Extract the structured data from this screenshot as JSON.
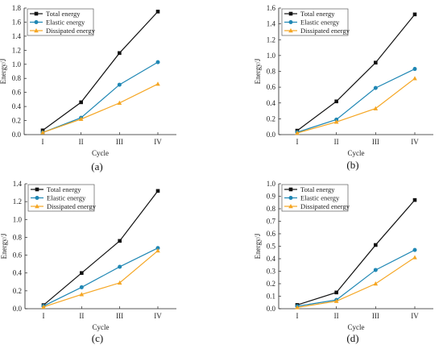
{
  "colors": {
    "total": "#111111",
    "elastic": "#1f87b4",
    "dissipated": "#f5a623"
  },
  "chart_data": [
    {
      "type": "line",
      "panel_label": "(a)",
      "categories": [
        "I",
        "II",
        "III",
        "IV"
      ],
      "xlabel": "Cycle",
      "ylabel": "Energy/J",
      "ylim": [
        0,
        1.8
      ],
      "ytick_step": 0.2,
      "yticks": [
        "0.0",
        "0.2",
        "0.4",
        "0.6",
        "0.8",
        "1.0",
        "1.2",
        "1.4",
        "1.6",
        "1.8"
      ],
      "legend_position": "top-left",
      "series": [
        {
          "name": "Total energy",
          "marker": "square",
          "values": [
            0.06,
            0.46,
            1.16,
            1.75
          ]
        },
        {
          "name": "Elastic energy",
          "marker": "circle",
          "values": [
            0.03,
            0.24,
            0.71,
            1.03
          ]
        },
        {
          "name": "Dissipated energy",
          "marker": "triangle",
          "values": [
            0.03,
            0.22,
            0.45,
            0.72
          ]
        }
      ]
    },
    {
      "type": "line",
      "panel_label": "(b)",
      "categories": [
        "I",
        "II",
        "III",
        "IV"
      ],
      "xlabel": "Cycle",
      "ylabel": "Energy/J",
      "ylim": [
        0,
        1.6
      ],
      "ytick_step": 0.2,
      "yticks": [
        "0.0",
        "0.2",
        "0.4",
        "0.6",
        "0.8",
        "1.0",
        "1.2",
        "1.4",
        "1.6"
      ],
      "legend_position": "top-left",
      "series": [
        {
          "name": "Total energy",
          "marker": "square",
          "values": [
            0.05,
            0.42,
            0.91,
            1.52
          ]
        },
        {
          "name": "Elastic energy",
          "marker": "circle",
          "values": [
            0.03,
            0.19,
            0.59,
            0.83
          ]
        },
        {
          "name": "Dissipated energy",
          "marker": "triangle",
          "values": [
            0.02,
            0.16,
            0.33,
            0.71
          ]
        }
      ]
    },
    {
      "type": "line",
      "panel_label": "(c)",
      "categories": [
        "I",
        "II",
        "III",
        "IV"
      ],
      "xlabel": "Cycle",
      "ylabel": "Energy/J",
      "ylim": [
        0,
        1.4
      ],
      "ytick_step": 0.2,
      "yticks": [
        "0.0",
        "0.2",
        "0.4",
        "0.6",
        "0.8",
        "1.0",
        "1.2",
        "1.4"
      ],
      "legend_position": "top-left",
      "series": [
        {
          "name": "Total energy",
          "marker": "square",
          "values": [
            0.04,
            0.4,
            0.76,
            1.32
          ]
        },
        {
          "name": "Elastic energy",
          "marker": "circle",
          "values": [
            0.03,
            0.24,
            0.47,
            0.68
          ]
        },
        {
          "name": "Dissipated energy",
          "marker": "triangle",
          "values": [
            0.02,
            0.16,
            0.29,
            0.65
          ]
        }
      ]
    },
    {
      "type": "line",
      "panel_label": "(d)",
      "categories": [
        "I",
        "II",
        "III",
        "IV"
      ],
      "xlabel": "Cycle",
      "ylabel": "Energy/J",
      "ylim": [
        0,
        1.0
      ],
      "ytick_step": 0.1,
      "yticks": [
        "0.0",
        "0.1",
        "0.2",
        "0.3",
        "0.4",
        "0.5",
        "0.6",
        "0.7",
        "0.8",
        "0.9",
        "1.0"
      ],
      "legend_position": "top-left",
      "series": [
        {
          "name": "Total energy",
          "marker": "square",
          "values": [
            0.03,
            0.13,
            0.51,
            0.87
          ]
        },
        {
          "name": "Elastic energy",
          "marker": "circle",
          "values": [
            0.02,
            0.07,
            0.31,
            0.47
          ]
        },
        {
          "name": "Dissipated energy",
          "marker": "triangle",
          "values": [
            0.01,
            0.06,
            0.2,
            0.41
          ]
        }
      ]
    }
  ]
}
